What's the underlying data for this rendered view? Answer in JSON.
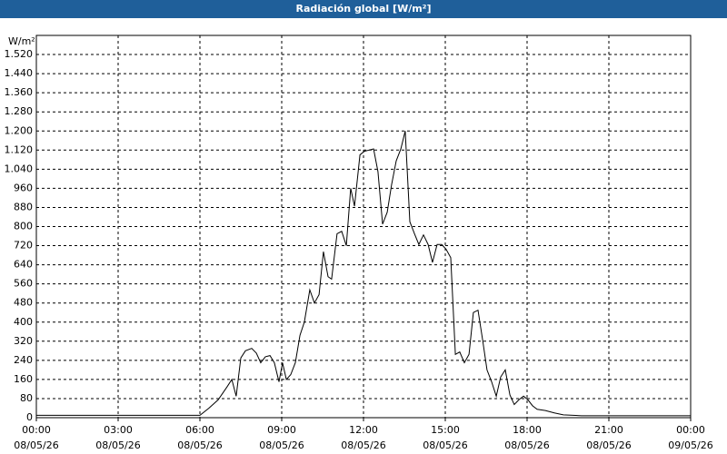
{
  "chart_data": {
    "type": "line",
    "title": "Radiación global [W/m²]",
    "y_label": "W/m²",
    "x": [
      0,
      6,
      6.33,
      6.67,
      7,
      7.17,
      7.33,
      7.5,
      7.67,
      7.9,
      8.07,
      8.23,
      8.4,
      8.57,
      8.73,
      8.9,
      9.03,
      9.17,
      9.33,
      9.5,
      9.67,
      9.83,
      10.03,
      10.2,
      10.37,
      10.53,
      10.7,
      10.83,
      11.03,
      11.2,
      11.37,
      11.53,
      11.67,
      11.87,
      12.03,
      12.2,
      12.37,
      12.53,
      12.7,
      12.87,
      13.03,
      13.2,
      13.37,
      13.53,
      13.7,
      13.87,
      14.03,
      14.2,
      14.37,
      14.53,
      14.7,
      14.87,
      15.03,
      15.2,
      15.37,
      15.53,
      15.7,
      15.87,
      16.03,
      16.2,
      16.37,
      16.53,
      16.7,
      16.87,
      17.03,
      17.2,
      17.37,
      17.53,
      17.7,
      17.87,
      18.03,
      18.2,
      18.37,
      18.67,
      19,
      19.33,
      20,
      24
    ],
    "series": [
      {
        "name": "Radiación global",
        "color": "#000000",
        "values": [
          10,
          10,
          40,
          75,
          130,
          160,
          90,
          250,
          280,
          290,
          270,
          230,
          255,
          260,
          230,
          150,
          230,
          160,
          180,
          230,
          345,
          400,
          535,
          480,
          515,
          695,
          590,
          580,
          770,
          780,
          720,
          960,
          885,
          1100,
          1115,
          1120,
          1125,
          1030,
          810,
          860,
          975,
          1075,
          1125,
          1200,
          820,
          770,
          725,
          765,
          725,
          650,
          725,
          725,
          705,
          670,
          265,
          275,
          230,
          265,
          440,
          450,
          325,
          200,
          150,
          90,
          170,
          200,
          95,
          55,
          75,
          90,
          75,
          50,
          35,
          30,
          20,
          12,
          8,
          8
        ]
      }
    ],
    "xlim": [
      0,
      24
    ],
    "xticks": [
      {
        "value": 0,
        "label": "00:00"
      },
      {
        "value": 3,
        "label": "03:00"
      },
      {
        "value": 6,
        "label": "06:00"
      },
      {
        "value": 9,
        "label": "09:00"
      },
      {
        "value": 12,
        "label": "12:00"
      },
      {
        "value": 15,
        "label": "15:00"
      },
      {
        "value": 18,
        "label": "18:00"
      },
      {
        "value": 21,
        "label": "21:00"
      },
      {
        "value": 24,
        "label": "00:00"
      }
    ],
    "xtick_dates": [
      "08/05/26",
      "08/05/26",
      "08/05/26",
      "08/05/26",
      "08/05/26",
      "08/05/26",
      "08/05/26",
      "08/05/26",
      "09/05/26"
    ],
    "ylim": [
      0,
      1600
    ],
    "yticks": [
      0,
      80,
      160,
      240,
      320,
      400,
      480,
      560,
      640,
      720,
      800,
      880,
      960,
      {
        "value": 1040,
        "label": "1.040"
      },
      {
        "value": 1120,
        "label": "1.120"
      },
      {
        "value": 1200,
        "label": "1.200"
      },
      {
        "value": 1280,
        "label": "1.280"
      },
      {
        "value": 1360,
        "label": "1.360"
      },
      {
        "value": 1440,
        "label": "1.440"
      },
      {
        "value": 1520,
        "label": "1.520"
      }
    ],
    "grid": true
  }
}
